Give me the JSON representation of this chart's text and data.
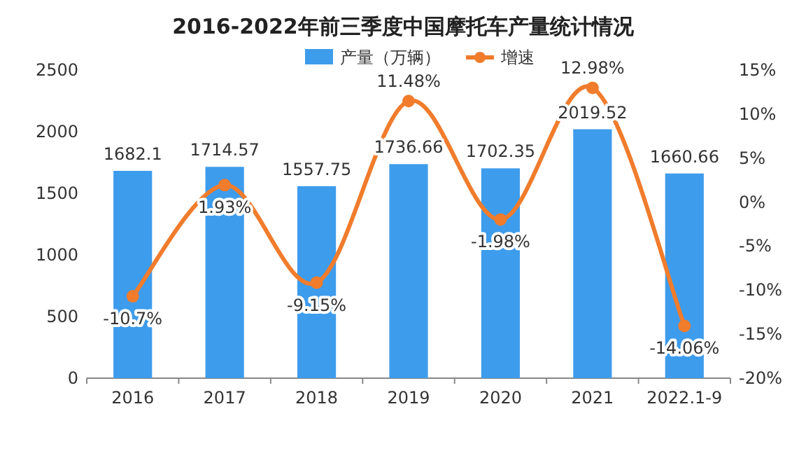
{
  "chart_data": {
    "type": "bar",
    "title": "2016-2022年前三季度中国摩托车产量统计情况",
    "categories": [
      "2016",
      "2017",
      "2018",
      "2019",
      "2020",
      "2021",
      "2022.1-9"
    ],
    "series": [
      {
        "name": "产量（万辆）",
        "color": "#3e9cec",
        "values": [
          1682.1,
          1714.57,
          1557.75,
          1736.66,
          1702.35,
          2019.52,
          1660.66
        ],
        "value_labels": [
          "1682.1",
          "1714.57",
          "1557.75",
          "1736.66",
          "1702.35",
          "2019.52",
          "1660.66"
        ]
      },
      {
        "name": "增速",
        "type": "line",
        "axis": "y2",
        "color": "#f07c2c",
        "marker": "circle",
        "values": [
          -10.7,
          1.93,
          -9.15,
          11.48,
          -1.98,
          12.98,
          -14.06
        ],
        "value_labels": [
          "-10.7%",
          "1.93%",
          "-9.15%",
          "11.48%",
          "-1.98%",
          "12.98%",
          "-14.06%"
        ]
      }
    ],
    "ylim": [
      0,
      2500
    ],
    "yticks": [
      0,
      500,
      1000,
      1500,
      2000,
      2500
    ],
    "y2lim": [
      -20,
      15
    ],
    "y2ticks": [
      {
        "value": -20,
        "label": "-20%"
      },
      {
        "value": -15,
        "label": "-15%"
      },
      {
        "value": -10,
        "label": "-10%"
      },
      {
        "value": -5,
        "label": "-5%"
      },
      {
        "value": 0,
        "label": "0%"
      },
      {
        "value": 5,
        "label": "5%"
      },
      {
        "value": 10,
        "label": "10%"
      },
      {
        "value": 15,
        "label": "15%"
      }
    ],
    "legend": "top",
    "grid": false
  }
}
